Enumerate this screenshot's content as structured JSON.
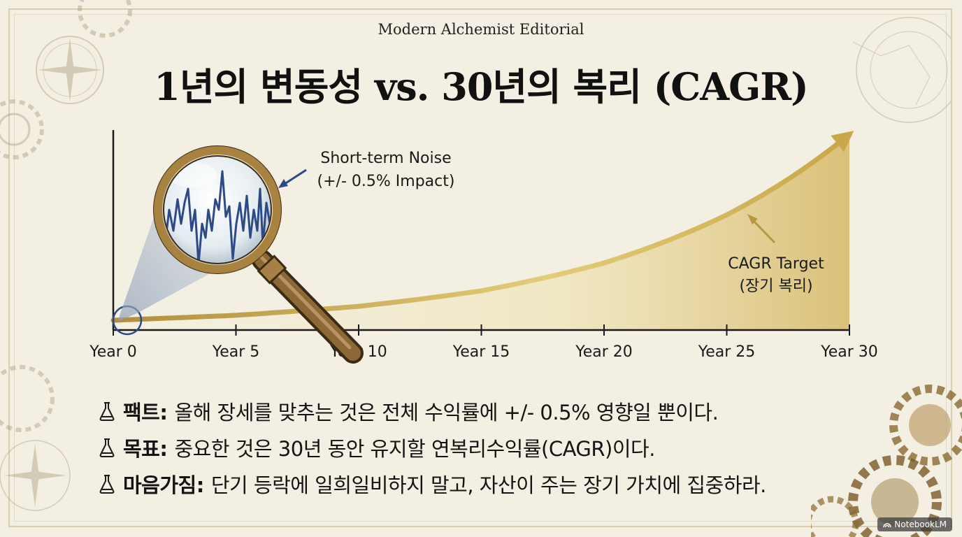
{
  "header": {
    "editorial": "Modern Alchemist Editorial",
    "title": "1년의 변동성 vs. 30년의 복리 (CAGR)"
  },
  "annotations": {
    "noise_line1": "Short-term Noise",
    "noise_line2": "(+/- 0.5% Impact)",
    "cagr_line1": "CAGR Target",
    "cagr_line2": "(장기 복리)"
  },
  "chart_data": {
    "type": "area",
    "x": [
      0,
      5,
      10,
      15,
      20,
      25,
      30
    ],
    "xticklabels": [
      "Year 0",
      "Year 5",
      "Year 10",
      "Year 15",
      "Year 20",
      "Year 25",
      "Year 30"
    ],
    "xlim": [
      0,
      30
    ],
    "series": [
      {
        "values": [
          1.0,
          1.16,
          1.45,
          1.95,
          2.85,
          4.4,
          7.0
        ],
        "color": "#c9a84a"
      }
    ]
  },
  "bullets": [
    {
      "key": "팩트:",
      "text": "올해 장세를 맞추는 것은 전체 수익률에 +/- 0.5% 영향일 뿐이다."
    },
    {
      "key": "목표:",
      "text": "중요한 것은 30년 동안 유지할 연복리수익률(CAGR)이다."
    },
    {
      "key": "마음가짐:",
      "text": "단기 등락에 일희일비하지 말고, 자산이 주는 장기 가치에 집중하라."
    }
  ],
  "badge": "NotebookLM",
  "colors": {
    "background": "#f3efe2",
    "gold": "#c9a84a",
    "noise_blue": "#2e4a86",
    "arrow_blue": "#2e4a86",
    "lens_rim": "#8a6a32"
  }
}
